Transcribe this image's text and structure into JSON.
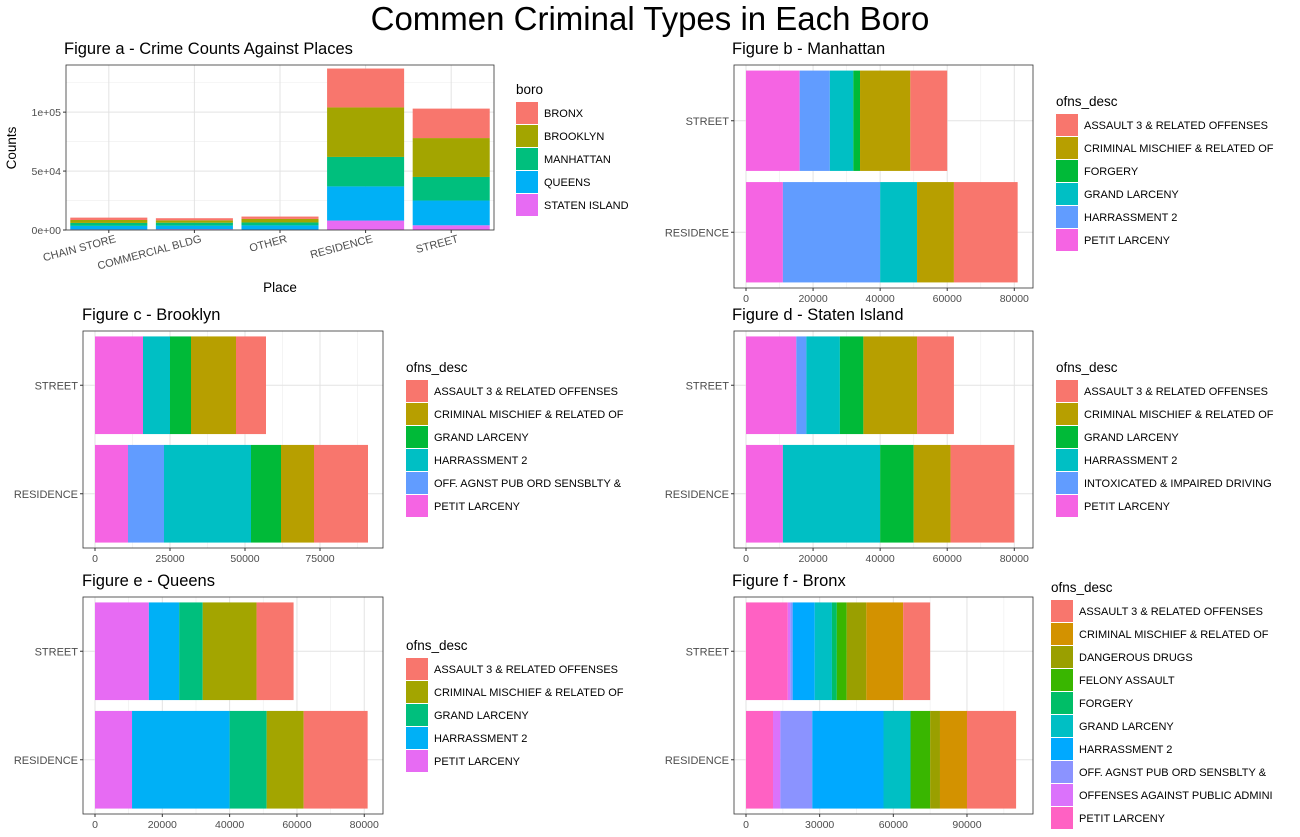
{
  "page": {
    "title": "Commen Criminal Types in Each Boro"
  },
  "chart_data": [
    {
      "id": "a",
      "type": "bar",
      "stacked": true,
      "orientation": "vertical",
      "title": "Figure a - Crime Counts Against Places",
      "xlabel": "Place",
      "ylabel": "Counts",
      "categories": [
        "CHAIN STORE",
        "COMMERCIAL BLDG",
        "OTHER",
        "RESIDENCE",
        "STREET"
      ],
      "ylim": [
        0,
        140000
      ],
      "yticks": [
        0,
        50000,
        100000
      ],
      "ytick_labels": [
        "0e+00",
        "5e+04",
        "1e+05"
      ],
      "grid": true,
      "legend": {
        "title": "boro",
        "position": "right"
      },
      "series": [
        {
          "name": "STATEN ISLAND",
          "color": "#E76BF3",
          "values": [
            500,
            700,
            400,
            8000,
            4000
          ]
        },
        {
          "name": "QUEENS",
          "color": "#00B0F6",
          "values": [
            3000,
            3000,
            3500,
            29000,
            21000
          ]
        },
        {
          "name": "MANHATTAN",
          "color": "#00BF7D",
          "values": [
            2500,
            2500,
            2500,
            25000,
            20000
          ]
        },
        {
          "name": "BROOKLYN",
          "color": "#A3A500",
          "values": [
            2500,
            2000,
            3000,
            42000,
            33000
          ]
        },
        {
          "name": "BRONX",
          "color": "#F8766D",
          "values": [
            2000,
            1800,
            2000,
            33000,
            25000
          ]
        }
      ]
    },
    {
      "id": "b",
      "type": "bar",
      "stacked": true,
      "orientation": "horizontal",
      "title": "Figure b - Manhattan",
      "categories": [
        "STREET",
        "RESIDENCE"
      ],
      "xlim": [
        0,
        82000
      ],
      "xticks": [
        0,
        20000,
        40000,
        60000,
        80000
      ],
      "grid": true,
      "legend": {
        "title": "ofns_desc",
        "position": "right"
      },
      "series": [
        {
          "name": "PETIT LARCENY",
          "color": "#F564E3",
          "values": [
            16000,
            11000
          ]
        },
        {
          "name": "HARRASSMENT 2",
          "color": "#619CFF",
          "values": [
            9000,
            29000
          ]
        },
        {
          "name": "GRAND LARCENY",
          "color": "#00BFC4",
          "values": [
            7000,
            11000
          ]
        },
        {
          "name": "FORGERY",
          "color": "#00BA38",
          "values": [
            2000,
            0
          ]
        },
        {
          "name": "CRIMINAL MISCHIEF & RELATED OF",
          "color": "#B79F00",
          "values": [
            15000,
            11000
          ]
        },
        {
          "name": "ASSAULT 3 & RELATED OFFENSES",
          "color": "#F8766D",
          "values": [
            11000,
            19000
          ]
        }
      ],
      "legend_order": [
        "ASSAULT 3 & RELATED OFFENSES",
        "CRIMINAL MISCHIEF & RELATED OF",
        "FORGERY",
        "GRAND LARCENY",
        "HARRASSMENT 2",
        "PETIT LARCENY"
      ]
    },
    {
      "id": "c",
      "type": "bar",
      "stacked": true,
      "orientation": "horizontal",
      "title": "Figure c - Brooklyn",
      "categories": [
        "STREET",
        "RESIDENCE"
      ],
      "xlim": [
        0,
        92000
      ],
      "xticks": [
        0,
        25000,
        50000,
        75000
      ],
      "grid": true,
      "legend": {
        "title": "ofns_desc",
        "position": "right"
      },
      "series": [
        {
          "name": "PETIT LARCENY",
          "color": "#F564E3",
          "values": [
            16000,
            11000
          ]
        },
        {
          "name": "OFF. AGNST PUB ORD SENSBLTY &",
          "color": "#619CFF",
          "values": [
            0,
            12000
          ]
        },
        {
          "name": "HARRASSMENT 2",
          "color": "#00BFC4",
          "values": [
            9000,
            29000
          ]
        },
        {
          "name": "GRAND LARCENY",
          "color": "#00BA38",
          "values": [
            7000,
            10000
          ]
        },
        {
          "name": "CRIMINAL MISCHIEF & RELATED OF",
          "color": "#B79F00",
          "values": [
            15000,
            11000
          ]
        },
        {
          "name": "ASSAULT 3 & RELATED OFFENSES",
          "color": "#F8766D",
          "values": [
            10000,
            18000
          ]
        }
      ],
      "legend_order": [
        "ASSAULT 3 & RELATED OFFENSES",
        "CRIMINAL MISCHIEF & RELATED OF",
        "GRAND LARCENY",
        "HARRASSMENT 2",
        "OFF. AGNST PUB ORD SENSBLTY &",
        "PETIT LARCENY"
      ]
    },
    {
      "id": "d",
      "type": "bar",
      "stacked": true,
      "orientation": "horizontal",
      "title": "Figure d - Staten Island",
      "categories": [
        "STREET",
        "RESIDENCE"
      ],
      "xlim": [
        0,
        82000
      ],
      "xticks": [
        0,
        20000,
        40000,
        60000,
        80000
      ],
      "grid": true,
      "legend": {
        "title": "ofns_desc",
        "position": "right"
      },
      "series": [
        {
          "name": "PETIT LARCENY",
          "color": "#F564E3",
          "values": [
            15000,
            11000
          ]
        },
        {
          "name": "INTOXICATED & IMPAIRED DRIVING",
          "color": "#619CFF",
          "values": [
            3000,
            0
          ]
        },
        {
          "name": "HARRASSMENT 2",
          "color": "#00BFC4",
          "values": [
            10000,
            29000
          ]
        },
        {
          "name": "GRAND LARCENY",
          "color": "#00BA38",
          "values": [
            7000,
            10000
          ]
        },
        {
          "name": "CRIMINAL MISCHIEF & RELATED OF",
          "color": "#B79F00",
          "values": [
            16000,
            11000
          ]
        },
        {
          "name": "ASSAULT 3 & RELATED OFFENSES",
          "color": "#F8766D",
          "values": [
            11000,
            19000
          ]
        }
      ],
      "legend_order": [
        "ASSAULT 3 & RELATED OFFENSES",
        "CRIMINAL MISCHIEF & RELATED OF",
        "GRAND LARCENY",
        "HARRASSMENT 2",
        "INTOXICATED & IMPAIRED DRIVING",
        "PETIT LARCENY"
      ]
    },
    {
      "id": "e",
      "type": "bar",
      "stacked": true,
      "orientation": "horizontal",
      "title": "Figure e - Queens",
      "categories": [
        "STREET",
        "RESIDENCE"
      ],
      "xlim": [
        0,
        82000
      ],
      "xticks": [
        0,
        20000,
        40000,
        60000,
        80000
      ],
      "grid": true,
      "legend": {
        "title": "ofns_desc",
        "position": "right"
      },
      "series": [
        {
          "name": "PETIT LARCENY",
          "color": "#E76BF3",
          "values": [
            16000,
            11000
          ]
        },
        {
          "name": "HARRASSMENT 2",
          "color": "#00B0F6",
          "values": [
            9000,
            29000
          ]
        },
        {
          "name": "GRAND LARCENY",
          "color": "#00BF7D",
          "values": [
            7000,
            11000
          ]
        },
        {
          "name": "CRIMINAL MISCHIEF & RELATED OF",
          "color": "#A3A500",
          "values": [
            16000,
            11000
          ]
        },
        {
          "name": "ASSAULT 3 & RELATED OFFENSES",
          "color": "#F8766D",
          "values": [
            11000,
            19000
          ]
        }
      ],
      "legend_order": [
        "ASSAULT 3 & RELATED OFFENSES",
        "CRIMINAL MISCHIEF & RELATED OF",
        "GRAND LARCENY",
        "HARRASSMENT 2",
        "PETIT LARCENY"
      ]
    },
    {
      "id": "f",
      "type": "bar",
      "stacked": true,
      "orientation": "horizontal",
      "title": "Figure f - Bronx",
      "categories": [
        "STREET",
        "RESIDENCE"
      ],
      "xlim": [
        0,
        112000
      ],
      "xticks": [
        0,
        30000,
        60000,
        90000
      ],
      "grid": true,
      "legend": {
        "title": "ofns_desc",
        "position": "right"
      },
      "series": [
        {
          "name": "PETIT LARCENY",
          "color": "#FF61C3",
          "values": [
            17000,
            11000
          ]
        },
        {
          "name": "OFFENSES AGAINST PUBLIC ADMINI",
          "color": "#DB72FB",
          "values": [
            1000,
            3000
          ]
        },
        {
          "name": "OFF. AGNST PUB ORD SENSBLTY &",
          "color": "#8B93FF",
          "values": [
            1000,
            13000
          ]
        },
        {
          "name": "HARRASSMENT 2",
          "color": "#00A9FF",
          "values": [
            9000,
            29000
          ]
        },
        {
          "name": "GRAND LARCENY",
          "color": "#00BFC4",
          "values": [
            7000,
            11000
          ]
        },
        {
          "name": "FORGERY",
          "color": "#00BE67",
          "values": [
            2000,
            0
          ]
        },
        {
          "name": "FELONY ASSAULT",
          "color": "#39B600",
          "values": [
            4000,
            8000
          ]
        },
        {
          "name": "DANGEROUS DRUGS",
          "color": "#9A9F00",
          "values": [
            8000,
            4000
          ]
        },
        {
          "name": "CRIMINAL MISCHIEF & RELATED OF",
          "color": "#D39200",
          "values": [
            15000,
            11000
          ]
        },
        {
          "name": "ASSAULT 3 & RELATED OFFENSES",
          "color": "#F8766D",
          "values": [
            11000,
            20000
          ]
        }
      ],
      "legend_order": [
        "ASSAULT 3 & RELATED OFFENSES",
        "CRIMINAL MISCHIEF & RELATED OF",
        "DANGEROUS DRUGS",
        "FELONY ASSAULT",
        "FORGERY",
        "GRAND LARCENY",
        "HARRASSMENT 2",
        "OFF. AGNST PUB ORD SENSBLTY &",
        "OFFENSES AGAINST PUBLIC ADMINI",
        "PETIT LARCENY"
      ]
    }
  ]
}
